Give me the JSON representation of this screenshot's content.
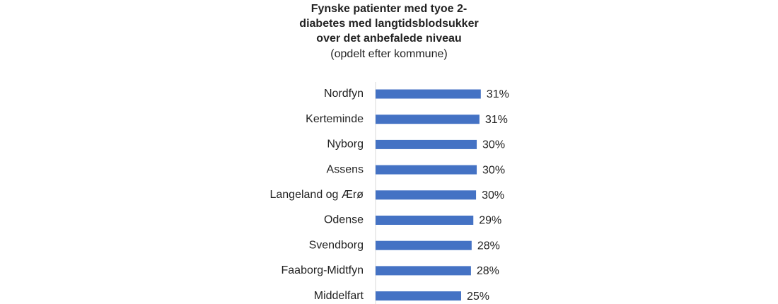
{
  "chart_data": {
    "type": "barh",
    "title": [
      "Fynske patienter med tyoe 2-",
      "diabetes med langtidsblodsukker",
      "over det anbefalede niveau"
    ],
    "subtitle": "(opdelt efter kommune)",
    "categories": [
      "Nordfyn",
      "Kerteminde",
      "Nyborg",
      "Assens",
      "Langeland og Ærø",
      "Odense",
      "Svendborg",
      "Faaborg-Midtfyn",
      "Middelfart"
    ],
    "values": [
      31.0,
      30.6,
      29.8,
      29.8,
      29.6,
      28.8,
      28.3,
      28.1,
      25.2
    ],
    "value_labels": [
      "31%",
      "31%",
      "30%",
      "30%",
      "30%",
      "29%",
      "28%",
      "28%",
      "25%"
    ],
    "color": "#4472c4",
    "xlim": [
      0,
      35
    ]
  }
}
